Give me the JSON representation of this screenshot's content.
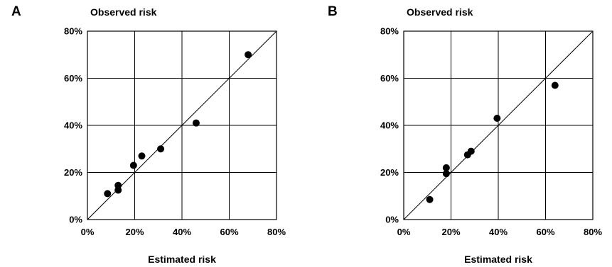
{
  "chart_data": [
    {
      "type": "scatter",
      "panel_label": "A",
      "ylabel": "Observed risk",
      "xlabel": "Estimated risk",
      "xlim": [
        0,
        80
      ],
      "ylim": [
        0,
        80
      ],
      "x_ticks": [
        "0%",
        "20%",
        "40%",
        "60%",
        "80%"
      ],
      "y_ticks": [
        "0%",
        "20%",
        "40%",
        "60%",
        "80%"
      ],
      "grid": true,
      "reference_line": "y = x",
      "points": [
        {
          "x": 8.5,
          "y": 11
        },
        {
          "x": 13,
          "y": 14.5
        },
        {
          "x": 13,
          "y": 12.5
        },
        {
          "x": 19.5,
          "y": 23
        },
        {
          "x": 23,
          "y": 27
        },
        {
          "x": 31,
          "y": 30
        },
        {
          "x": 46,
          "y": 41
        },
        {
          "x": 68,
          "y": 70
        }
      ]
    },
    {
      "type": "scatter",
      "panel_label": "B",
      "ylabel": "Observed risk",
      "xlabel": "Estimated risk",
      "xlim": [
        0,
        80
      ],
      "ylim": [
        0,
        80
      ],
      "x_ticks": [
        "0%",
        "20%",
        "40%",
        "60%",
        "80%"
      ],
      "y_ticks": [
        "0%",
        "20%",
        "40%",
        "60%",
        "80%"
      ],
      "grid": true,
      "reference_line": "y = x",
      "points": [
        {
          "x": 11,
          "y": 8.5
        },
        {
          "x": 18,
          "y": 22
        },
        {
          "x": 18,
          "y": 19.5
        },
        {
          "x": 27,
          "y": 27.5
        },
        {
          "x": 28.5,
          "y": 29
        },
        {
          "x": 39.5,
          "y": 43
        },
        {
          "x": 64,
          "y": 57
        }
      ]
    }
  ]
}
